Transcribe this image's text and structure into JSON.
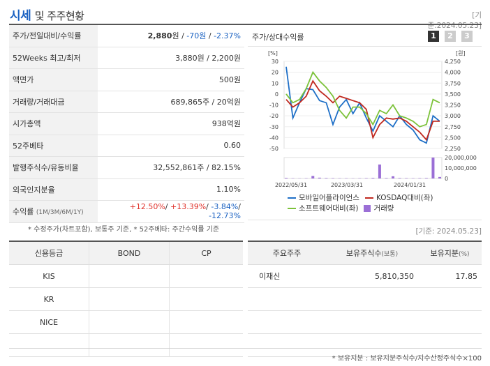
{
  "header": {
    "title_main": "시세",
    "title_rest": "및 주주현황",
    "ref_date": "[기준:2024.05.23]"
  },
  "info_rows": [
    {
      "label": "주가/전일대비/수익률",
      "kind": "price"
    },
    {
      "label": "52Weeks 최고/최저",
      "value": "3,880원 / 2,200원"
    },
    {
      "label": "액면가",
      "value": "500원"
    },
    {
      "label": "거래량/거래대금",
      "value": "689,865주 / 20억원"
    },
    {
      "label": "시가총액",
      "value": "938억원"
    },
    {
      "label": "52주베타",
      "value": "0.60"
    },
    {
      "label": "발행주식수/유동비율",
      "value": "32,552,861주 / 82.15%"
    },
    {
      "label": "외국인지분율",
      "value": "1.10%"
    },
    {
      "label": "수익률",
      "label_sub": "(1M/3M/6M/1Y)",
      "kind": "returns"
    }
  ],
  "price": {
    "current": "2,880",
    "unit": "원",
    "sep": " / ",
    "change": "-70원",
    "rate": "-2.37%"
  },
  "returns": {
    "r1m": "+12.50%",
    "r3m": "+13.39%",
    "r6m": "-3.84%",
    "r1y": "-12.73%",
    "sep": "/ "
  },
  "left_note": "* 수정주가(차트포함), 보통주 기준, * 52주베타: 주간수익률 기준",
  "chart_panel": {
    "title": "주가/상대수익률",
    "pages": [
      "1",
      "2",
      "3"
    ],
    "left_unit": "[%]",
    "right_unit": "[원]",
    "left_ticks": [
      "30",
      "20",
      "10",
      "0",
      "-10",
      "-20",
      "-30",
      "-40",
      "-50"
    ],
    "right_ticks": [
      "4,250",
      "4,000",
      "3,750",
      "3,500",
      "3,250",
      "3,000",
      "2,750",
      "2,500",
      "2,250"
    ],
    "volume_ticks": [
      "20,000,000",
      "10,000,000",
      "0"
    ],
    "x_labels": [
      "2022/05/31",
      "2023/03/31",
      "2024/01/31"
    ]
  },
  "legend": {
    "mobile": "모바일어플라이언스",
    "kosdaq": "KOSDAQ대비(좌)",
    "software": "소프트웨어대비(좌)",
    "volume": "거래량"
  },
  "colors": {
    "mobile": "#1e6fc7",
    "kosdaq": "#c0281e",
    "software": "#7cc23a",
    "volume": "#9b6fd6",
    "accent": "#1b62c2"
  },
  "chart_data": {
    "type": "line",
    "x_labels": [
      "2022/05/31",
      "2023/03/31",
      "2024/01/31"
    ],
    "series": [
      {
        "name": "모바일어플라이언스",
        "axis": "left",
        "values": [
          25,
          -22,
          -8,
          5,
          4,
          -6,
          -8,
          -28,
          -12,
          -5,
          -18,
          -8,
          -22,
          -34,
          -20,
          -25,
          -30,
          -20,
          -28,
          -33,
          -42,
          -45,
          -20,
          -25
        ]
      },
      {
        "name": "KOSDAQ대비(좌)",
        "axis": "left",
        "values": [
          -5,
          -12,
          -8,
          -2,
          12,
          3,
          -2,
          -8,
          -2,
          -4,
          -6,
          -8,
          -14,
          -40,
          -28,
          -22,
          -23,
          -22,
          -25,
          -30,
          -35,
          -42,
          -25,
          -25
        ]
      },
      {
        "name": "소프트웨어대비(좌)",
        "axis": "left",
        "values": [
          0,
          -8,
          -5,
          5,
          20,
          12,
          6,
          -2,
          -15,
          -22,
          -12,
          -12,
          -18,
          -28,
          -15,
          -18,
          -10,
          -20,
          -22,
          -25,
          -30,
          -28,
          -5,
          -8
        ]
      },
      {
        "name": "거래량",
        "axis": "volume",
        "values": [
          0.6,
          0.3,
          0.2,
          0.3,
          2.5,
          0.8,
          0.5,
          0.4,
          0.3,
          0.3,
          0.2,
          0.3,
          0.4,
          0.6,
          14,
          0.5,
          2.2,
          0.5,
          0.4,
          0.3,
          0.4,
          0.5,
          21,
          1.5
        ]
      }
    ],
    "left_range": [
      -50,
      30
    ],
    "right_range": [
      2250,
      4250
    ],
    "volume_range": [
      0,
      20000000
    ]
  },
  "chart_note": "[기준: 2024.05.23]",
  "credit_table": {
    "headers": [
      "신용등급",
      "BOND",
      "CP"
    ],
    "rows": [
      [
        "KIS",
        "",
        ""
      ],
      [
        "KR",
        "",
        ""
      ],
      [
        "NICE",
        "",
        ""
      ],
      [
        "",
        "",
        ""
      ]
    ]
  },
  "holder_table": {
    "headers": [
      "주요주주",
      "보유주식수",
      "(보통)",
      "보유지분",
      "(%)"
    ],
    "rows": [
      [
        "이재신",
        "5,810,350",
        "17.85"
      ],
      [
        "",
        "",
        ""
      ],
      [
        "",
        "",
        ""
      ],
      [
        "",
        "",
        ""
      ]
    ]
  },
  "bottom_note": "* 보유지분 : 보유지분주식수/지수산정주식수×100"
}
